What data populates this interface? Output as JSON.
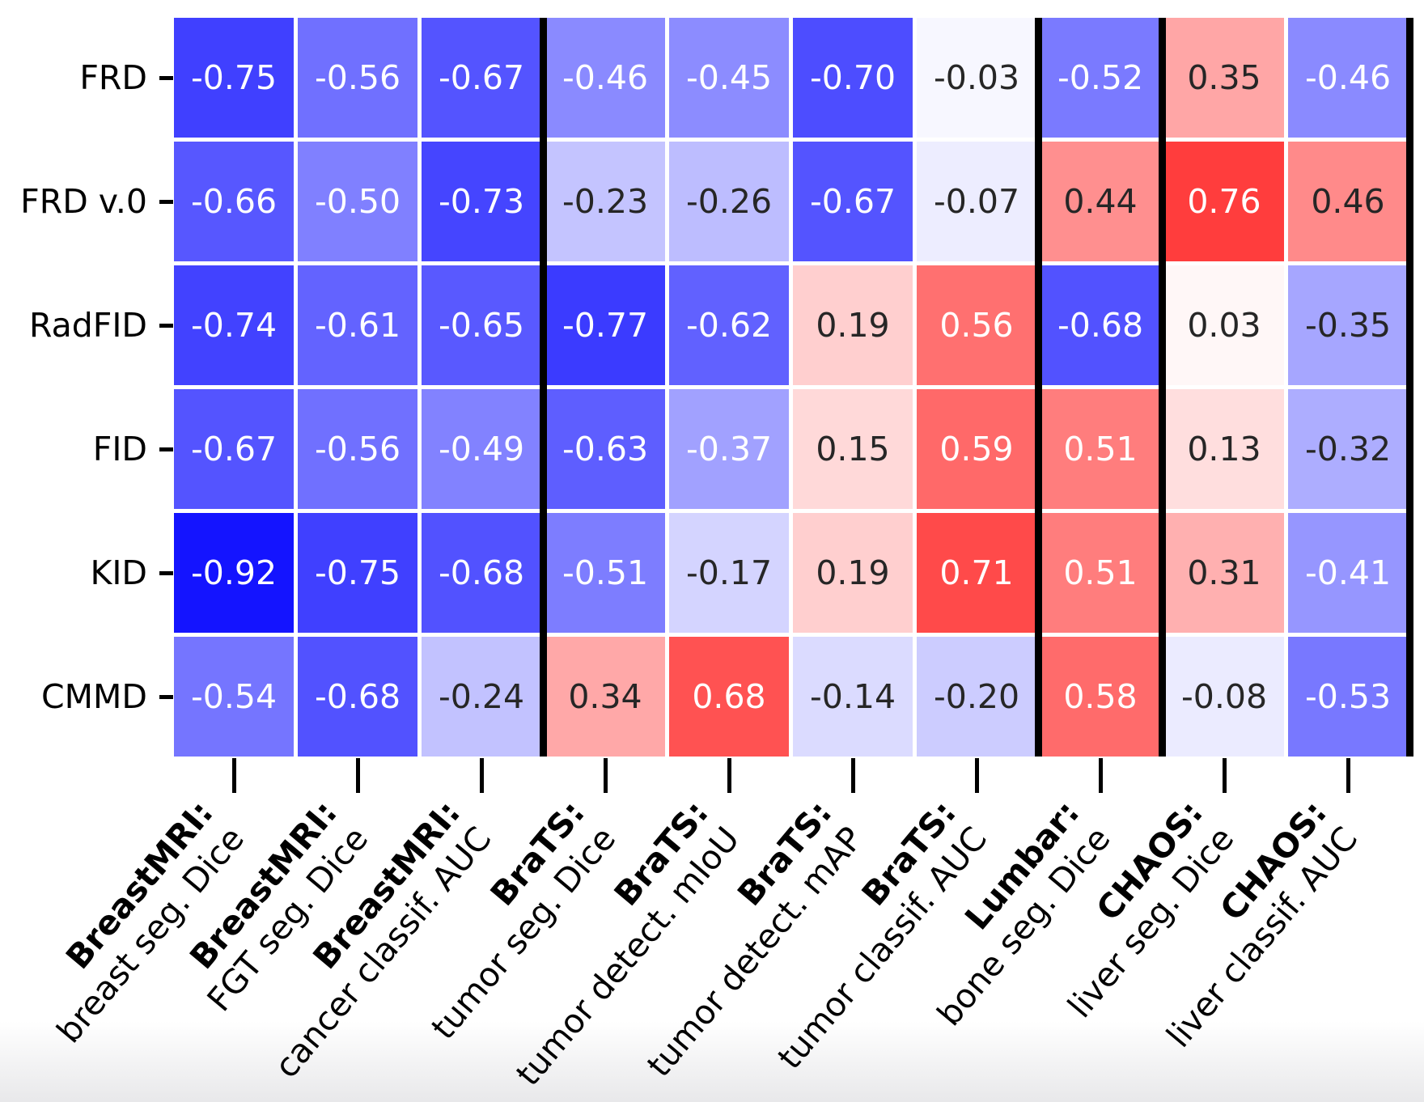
{
  "figure": {
    "description": "Correlation heatmap of image-quality metrics vs downstream task performance"
  },
  "chart_data": {
    "type": "heatmap",
    "title": "",
    "xlabel": "",
    "ylabel": "",
    "rows": [
      "FRD",
      "FRD v.0",
      "RadFID",
      "FID",
      "KID",
      "CMMD"
    ],
    "columns": [
      {
        "dataset": "BreastMRI:",
        "task": "breast seg. Dice"
      },
      {
        "dataset": "BreastMRI:",
        "task": "FGT seg. Dice"
      },
      {
        "dataset": "BreastMRI:",
        "task": "cancer classif. AUC"
      },
      {
        "dataset": "BraTS:",
        "task": "tumor seg. Dice"
      },
      {
        "dataset": "BraTS:",
        "task": "tumor detect. mIoU"
      },
      {
        "dataset": "BraTS:",
        "task": "tumor detect. mAP"
      },
      {
        "dataset": "BraTS:",
        "task": "tumor classif. AUC"
      },
      {
        "dataset": "Lumbar:",
        "task": "bone seg. Dice"
      },
      {
        "dataset": "CHAOS:",
        "task": "liver seg. Dice"
      },
      {
        "dataset": "CHAOS:",
        "task": "liver classif. AUC"
      }
    ],
    "values": [
      [
        -0.75,
        -0.56,
        -0.67,
        -0.46,
        -0.45,
        -0.7,
        -0.03,
        -0.52,
        0.35,
        -0.46
      ],
      [
        -0.66,
        -0.5,
        -0.73,
        -0.23,
        -0.26,
        -0.67,
        -0.07,
        0.44,
        0.76,
        0.46
      ],
      [
        -0.74,
        -0.61,
        -0.65,
        -0.77,
        -0.62,
        0.19,
        0.56,
        -0.68,
        0.03,
        -0.35
      ],
      [
        -0.67,
        -0.56,
        -0.49,
        -0.63,
        -0.37,
        0.15,
        0.59,
        0.51,
        0.13,
        -0.32
      ],
      [
        -0.92,
        -0.75,
        -0.68,
        -0.51,
        -0.17,
        0.19,
        0.71,
        0.51,
        0.31,
        -0.41
      ],
      [
        -0.54,
        -0.68,
        -0.24,
        0.34,
        0.68,
        -0.14,
        -0.2,
        0.58,
        -0.08,
        -0.53
      ]
    ],
    "value_format": "%.2f",
    "colormap": {
      "name": "bwr",
      "vmin": -1,
      "vmax": 1,
      "negative_color": "#0000ff",
      "mid_color": "#ffffff",
      "positive_color": "#ff0000"
    },
    "annotation_text_colors": {
      "on_dark_cells": "#ffffff",
      "on_light_cells": "#262626"
    },
    "cell_gap_color": "#ffffff",
    "separator_color": "#000000",
    "group_separators_after_columns": [
      3,
      7,
      8,
      10
    ],
    "legend_position": "none",
    "grid": false
  }
}
